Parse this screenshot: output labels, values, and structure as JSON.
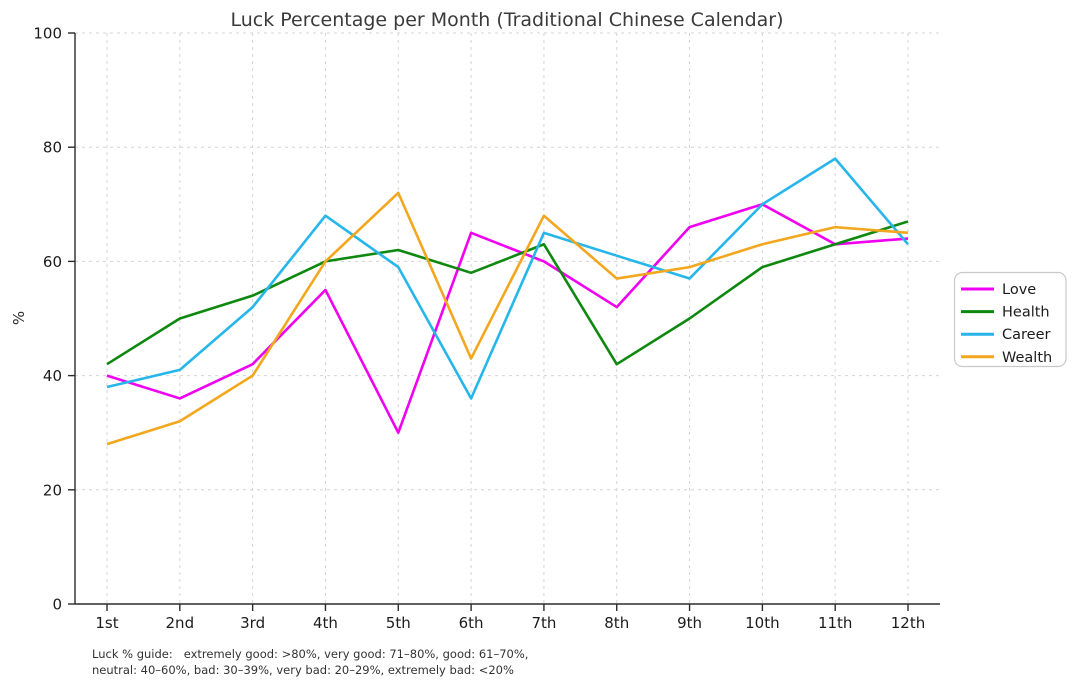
{
  "title": "Luck Percentage per Month (Traditional Chinese Calendar)",
  "footnote": {
    "line1": "Luck % guide:   extremely good: >80%, very good: 71–80%, good: 61–70%,",
    "line2": "neutral: 40–60%, bad: 30–39%, very bad: 20–29%, extremely bad: <20%"
  },
  "chart_data": {
    "type": "line",
    "title": "Luck Percentage per Month (Traditional Chinese Calendar)",
    "xlabel": "",
    "ylabel": "%",
    "categories": [
      "1st",
      "2nd",
      "3rd",
      "4th",
      "5th",
      "6th",
      "7th",
      "8th",
      "9th",
      "10th",
      "11th",
      "12th"
    ],
    "y_ticks": [
      0,
      20,
      40,
      60,
      80,
      100
    ],
    "ylim": [
      0,
      100
    ],
    "grid": true,
    "grid_style": "dashed-light",
    "legend_position": "center-right-outside",
    "series": [
      {
        "name": "Love",
        "color": "#f000f0",
        "values": [
          40,
          36,
          42,
          55,
          30,
          65,
          60,
          52,
          66,
          70,
          63,
          64
        ]
      },
      {
        "name": "Health",
        "color": "#0e880e",
        "values": [
          42,
          50,
          54,
          60,
          62,
          58,
          63,
          42,
          50,
          59,
          63,
          67
        ]
      },
      {
        "name": "Career",
        "color": "#27b6ea",
        "values": [
          38,
          41,
          52,
          68,
          59,
          36,
          65,
          61,
          57,
          70,
          78,
          63
        ]
      },
      {
        "name": "Wealth",
        "color": "#f2a71e",
        "values": [
          28,
          32,
          40,
          60,
          72,
          43,
          68,
          57,
          59,
          63,
          66,
          65
        ]
      }
    ]
  },
  "style_colors": {
    "grid": "#d4d4d4",
    "spine": "#2b2b2b",
    "tick_label": "#1c1c1c",
    "title_text": "#3a3a3a",
    "footnote_text": "#333333",
    "legend_border": "#c9c9c9"
  }
}
